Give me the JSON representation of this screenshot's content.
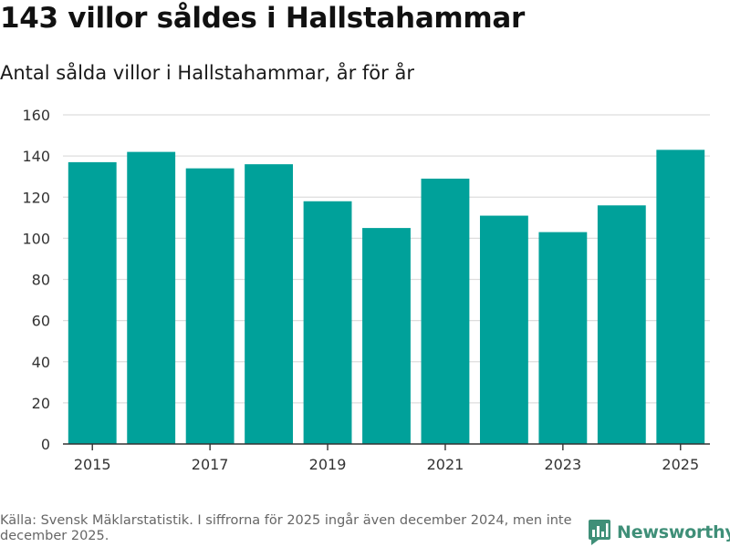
{
  "title": "143 villor såldes i Hallstahammar",
  "subtitle": "Antal sålda villor i Hallstahammar, år för år",
  "source": "Källa: Svensk Mäklarstatistik. I siffrorna för 2025 ingår även december 2024, men inte december 2025.",
  "brand": {
    "name": "Newsworthy",
    "icon": "newsworthy-logo-icon"
  },
  "colors": {
    "bar": "#00a19a",
    "grid": "#dddddd",
    "axis": "#333333",
    "brand": "#3f8f78"
  },
  "chart_data": {
    "type": "bar",
    "categories": [
      "2015",
      "2016",
      "2017",
      "2018",
      "2019",
      "2020",
      "2021",
      "2022",
      "2023",
      "2024",
      "2025"
    ],
    "values": [
      137,
      142,
      134,
      136,
      118,
      105,
      129,
      111,
      103,
      116,
      143
    ],
    "tick_labels": [
      "2015",
      "2017",
      "2019",
      "2021",
      "2023",
      "2025"
    ],
    "y_ticks": [
      0,
      20,
      40,
      60,
      80,
      100,
      120,
      140,
      160
    ],
    "ylim": [
      0,
      160
    ],
    "xlabel": "",
    "ylabel": "",
    "grid": true
  }
}
